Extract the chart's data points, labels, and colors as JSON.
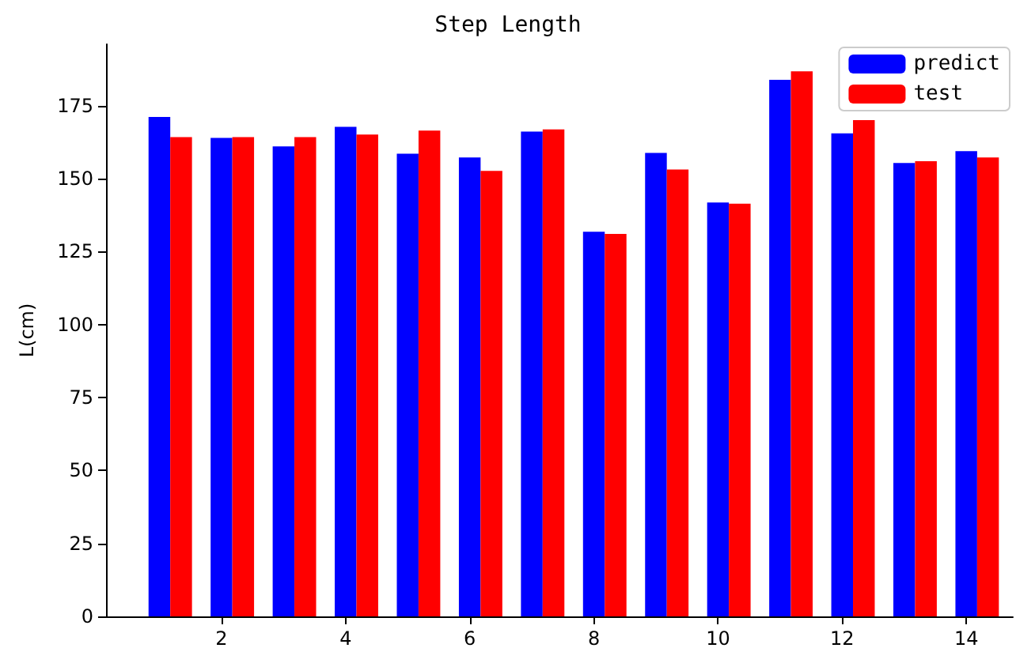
{
  "chart_data": {
    "type": "bar",
    "title": "Step Length",
    "ylabel": "L(cm)",
    "x": [
      1,
      2,
      3,
      4,
      5,
      6,
      7,
      8,
      9,
      10,
      11,
      12,
      13,
      14
    ],
    "series": [
      {
        "name": "predict",
        "color": "#0000ff",
        "values": [
          171.1,
          163.9,
          161.0,
          167.7,
          158.5,
          157.2,
          166.1,
          131.8,
          158.8,
          141.8,
          183.8,
          165.5,
          155.3,
          159.4
        ]
      },
      {
        "name": "test",
        "color": "#ff0000",
        "values": [
          164.2,
          164.2,
          164.2,
          165.1,
          166.4,
          152.6,
          166.8,
          131.0,
          153.1,
          141.4,
          186.7,
          170.0,
          155.9,
          157.2
        ]
      }
    ],
    "xlim": [
      0.14,
      14.75
    ],
    "xticks": [
      2,
      4,
      6,
      8,
      10,
      12,
      14
    ],
    "ylim": [
      0,
      196
    ],
    "yticks": [
      0,
      25,
      50,
      75,
      100,
      125,
      150,
      175
    ],
    "grid": false,
    "legend": "top right"
  }
}
